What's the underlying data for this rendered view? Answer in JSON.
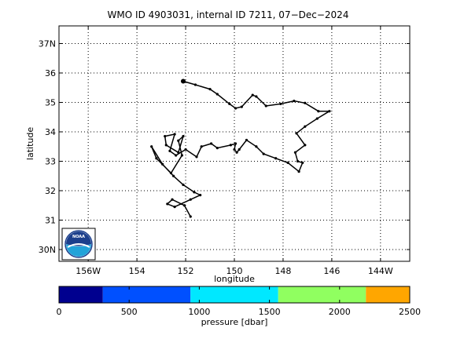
{
  "chart_data": [
    {
      "type": "line",
      "title": "WMO ID 4903031, internal ID 7211, 07−Dec−2024",
      "xlabel": "longitude",
      "ylabel": "latitude",
      "xlim": [
        -157.2,
        -142.8
      ],
      "ylim": [
        29.6,
        37.6
      ],
      "grid": true,
      "grid_style": "dotted",
      "x_ticks": [
        {
          "value": -156,
          "label": "156W"
        },
        {
          "value": -154,
          "label": "154"
        },
        {
          "value": -152,
          "label": "152"
        },
        {
          "value": -150,
          "label": "150"
        },
        {
          "value": -148,
          "label": "148"
        },
        {
          "value": -146,
          "label": "146"
        },
        {
          "value": -144,
          "label": "144W"
        }
      ],
      "y_ticks": [
        {
          "value": 30,
          "label": "30N"
        },
        {
          "value": 31,
          "label": "31"
        },
        {
          "value": 32,
          "label": "32"
        },
        {
          "value": 33,
          "label": "33"
        },
        {
          "value": 34,
          "label": "34"
        },
        {
          "value": 35,
          "label": "35"
        },
        {
          "value": 36,
          "label": "36"
        },
        {
          "value": 37,
          "label": "37N"
        }
      ],
      "line_color": "#000000",
      "marker": "dot",
      "start_point": {
        "x": -152.1,
        "y": 35.72
      },
      "series": [
        {
          "x": [
            -152.1,
            -151.6,
            -151.0,
            -150.7,
            -150.2,
            -149.95,
            -149.7,
            -149.25,
            -149.1,
            -148.7,
            -148.1,
            -147.55,
            -147.1,
            -146.55,
            -146.1,
            -146.6,
            -147.1,
            -147.45,
            -147.1,
            -147.5,
            -147.4,
            -147.2,
            -147.35,
            -147.8,
            -148.3,
            -148.8,
            -149.1,
            -149.5,
            -149.8,
            -149.9,
            -150.0,
            -149.95,
            -150.15,
            -150.7,
            -150.95,
            -151.35,
            -151.55,
            -152.0,
            -152.4,
            -152.65,
            -152.45,
            -152.85,
            -152.8,
            -152.3,
            -152.1,
            -152.3,
            -152.15,
            -152.6,
            -153.2,
            -153.4,
            -152.95,
            -152.5,
            -152.1,
            -151.65,
            -151.4,
            -151.8,
            -152.45,
            -152.75,
            -152.55,
            -152.05,
            -151.8
          ],
          "y": [
            35.72,
            35.6,
            35.45,
            35.28,
            34.95,
            34.8,
            34.85,
            35.25,
            35.2,
            34.88,
            34.95,
            35.05,
            34.98,
            34.7,
            34.7,
            34.45,
            34.18,
            33.95,
            33.55,
            33.3,
            33.0,
            32.95,
            32.65,
            32.95,
            33.1,
            33.25,
            33.5,
            33.72,
            33.4,
            33.3,
            33.4,
            33.6,
            33.55,
            33.45,
            33.6,
            33.5,
            33.15,
            33.4,
            33.2,
            33.35,
            33.92,
            33.85,
            33.55,
            33.3,
            33.85,
            33.7,
            33.2,
            32.6,
            33.1,
            33.5,
            32.9,
            32.5,
            32.2,
            31.95,
            31.85,
            31.7,
            31.45,
            31.55,
            31.7,
            31.5,
            31.12
          ]
        }
      ]
    },
    {
      "type": "colorbar",
      "xlabel": "pressure [dbar]",
      "xlim": [
        0,
        2500
      ],
      "tick_labels": [
        "0",
        "500",
        "1000",
        "1500",
        "2000",
        "2500"
      ],
      "tick_values": [
        0,
        500,
        1000,
        1500,
        2000,
        2500
      ],
      "bins": [
        {
          "from": 0,
          "to": 312.5,
          "color": "#00008f"
        },
        {
          "from": 312.5,
          "to": 937.5,
          "color": "#0050ff"
        },
        {
          "from": 937.5,
          "to": 1562.5,
          "color": "#00e8ff"
        },
        {
          "from": 1562.5,
          "to": 2187.5,
          "color": "#90ff60"
        },
        {
          "from": 2187.5,
          "to": 2500,
          "color": "#ffa600"
        }
      ]
    }
  ],
  "logo": {
    "name": "noaa-logo",
    "text": "NOAA"
  }
}
